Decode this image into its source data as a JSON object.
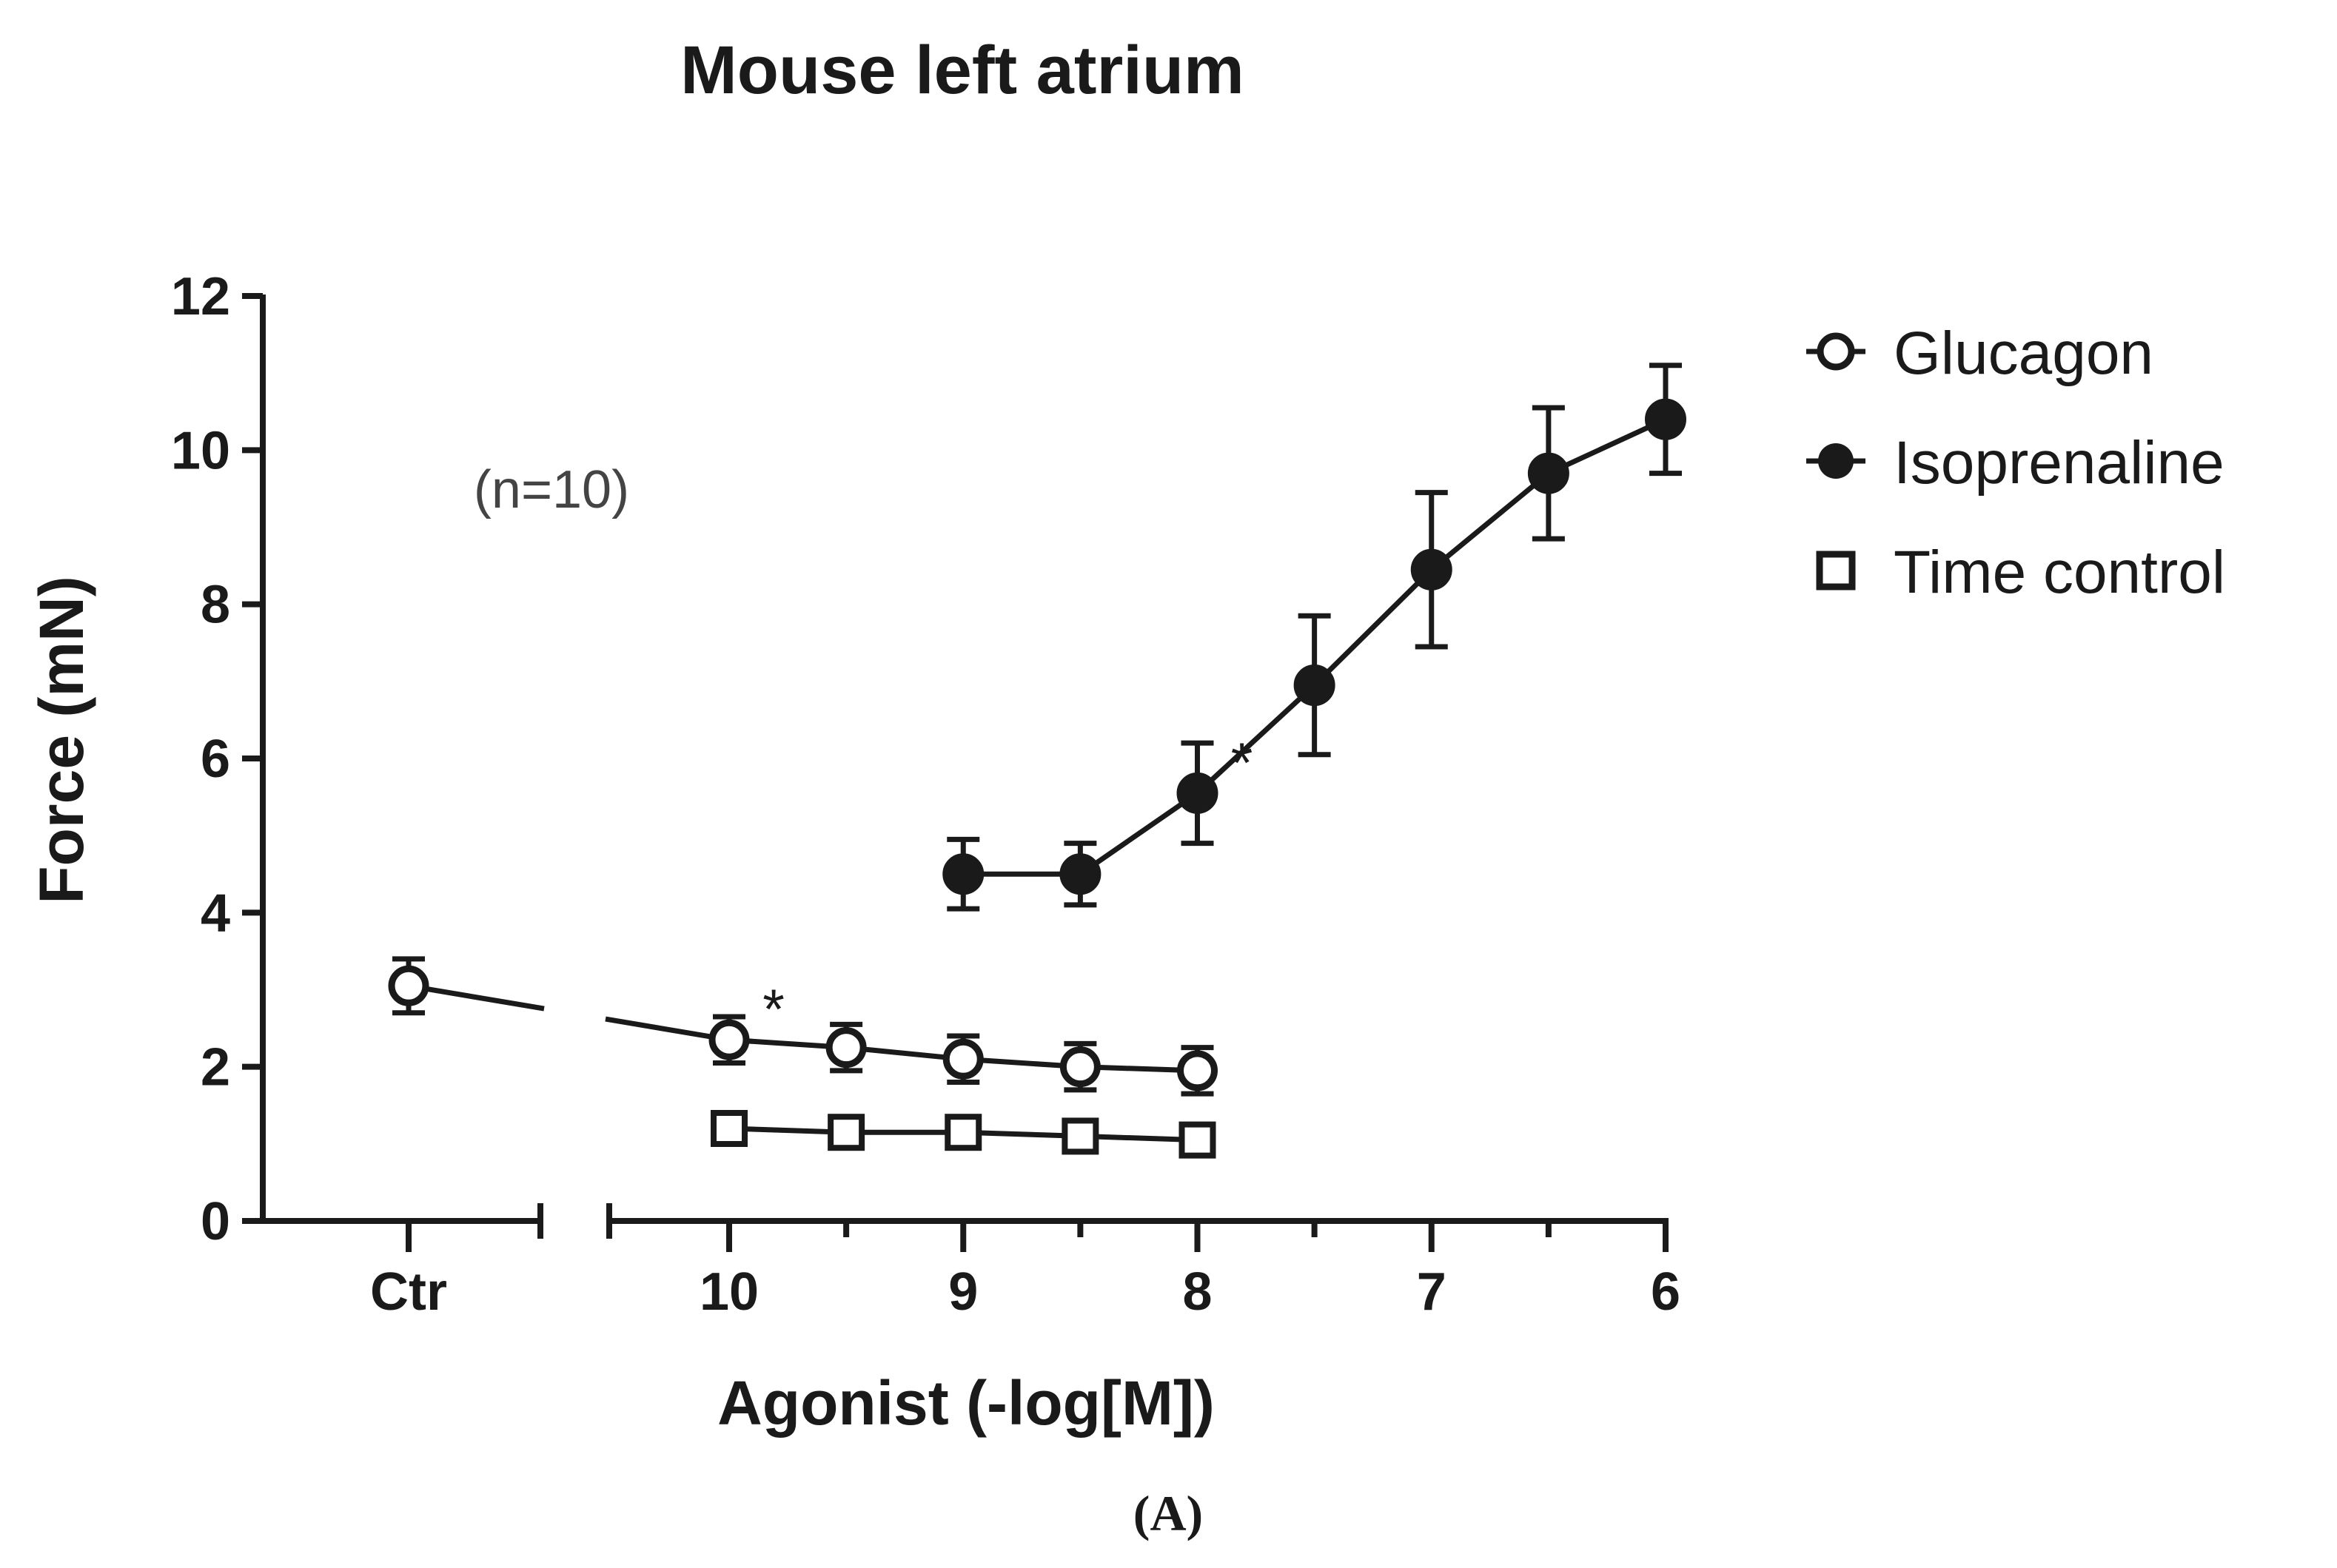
{
  "chart_data": {
    "type": "line",
    "title": "Mouse left atrium",
    "xlabel": "Agonist (-log[M])",
    "ylabel": "Force (mN)",
    "ylim": [
      0,
      12
    ],
    "yticks": [
      0,
      2,
      4,
      6,
      8,
      10,
      12
    ],
    "x_axis_reversed": true,
    "x_axis_break": true,
    "x_control_category": "Ctr",
    "xticks": [
      "Ctr",
      "10",
      "9",
      "8",
      "7",
      "6"
    ],
    "annotation": "(n=10)",
    "panel_label": "(A)",
    "legend_position": "right",
    "series": [
      {
        "name": "Glucagon",
        "marker": "open-circle",
        "points": [
          {
            "x": "Ctr",
            "y": 3.05,
            "err": 0.35
          },
          {
            "x": 10,
            "y": 2.35,
            "err": 0.3
          },
          {
            "x": 9.5,
            "y": 2.25,
            "err": 0.3
          },
          {
            "x": 9,
            "y": 2.1,
            "err": 0.3
          },
          {
            "x": 8.5,
            "y": 2.0,
            "err": 0.3
          },
          {
            "x": 8,
            "y": 1.95,
            "err": 0.3
          }
        ]
      },
      {
        "name": "Isoprenaline",
        "marker": "filled-circle",
        "points": [
          {
            "x": 9,
            "y": 4.5,
            "err": 0.45
          },
          {
            "x": 8.5,
            "y": 4.5,
            "err": 0.4
          },
          {
            "x": 8,
            "y": 5.55,
            "err": 0.65
          },
          {
            "x": 7.5,
            "y": 6.95,
            "err": 0.9
          },
          {
            "x": 7,
            "y": 8.45,
            "err": 1.0
          },
          {
            "x": 6.5,
            "y": 9.7,
            "err": 0.85
          },
          {
            "x": 6,
            "y": 10.4,
            "err": 0.7
          }
        ]
      },
      {
        "name": "Time control",
        "marker": "open-square",
        "points": [
          {
            "x": 10,
            "y": 1.2,
            "err": 0
          },
          {
            "x": 9.5,
            "y": 1.15,
            "err": 0
          },
          {
            "x": 9,
            "y": 1.15,
            "err": 0
          },
          {
            "x": 8.5,
            "y": 1.1,
            "err": 0
          },
          {
            "x": 8,
            "y": 1.05,
            "err": 0
          }
        ]
      }
    ],
    "significance": [
      {
        "series": "Glucagon",
        "x": 10,
        "label": "*"
      },
      {
        "series": "Isoprenaline",
        "x": 8,
        "label": "*"
      }
    ]
  }
}
